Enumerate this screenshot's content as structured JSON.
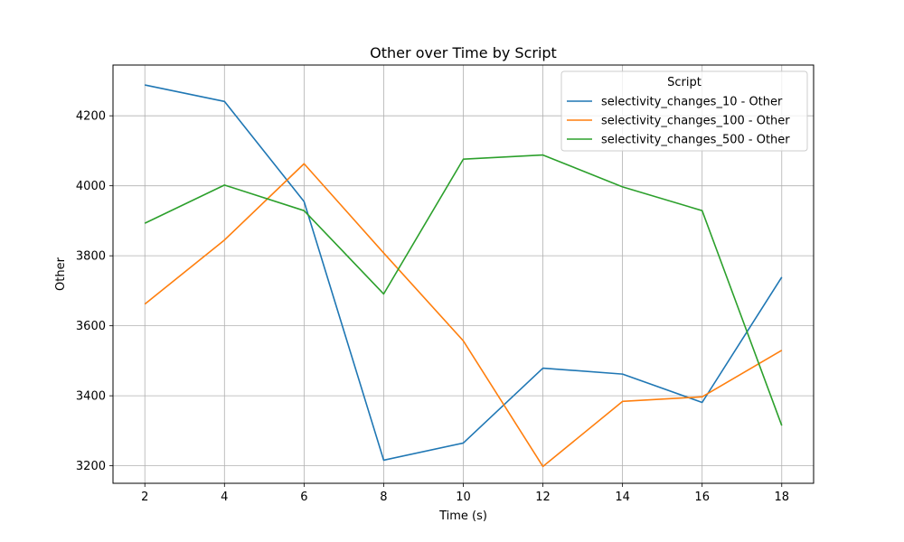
{
  "chart_data": {
    "type": "line",
    "title": "Other over Time by Script",
    "xlabel": "Time (s)",
    "ylabel": "Other",
    "x": [
      2,
      4,
      6,
      8,
      10,
      12,
      14,
      16,
      18
    ],
    "xlim": [
      1.2,
      18.8
    ],
    "ylim": [
      3150,
      4345
    ],
    "xticks": [
      2,
      4,
      6,
      8,
      10,
      12,
      14,
      16,
      18
    ],
    "yticks": [
      3200,
      3400,
      3600,
      3800,
      4000,
      4200
    ],
    "grid": true,
    "legend": {
      "title": "Script",
      "placement": "top-right"
    },
    "series": [
      {
        "name": "selectivity_changes_10 - Other",
        "color": "#1f77b4",
        "values": [
          4288,
          4241,
          3955,
          3216,
          3265,
          3479,
          3462,
          3381,
          3739
        ]
      },
      {
        "name": "selectivity_changes_100 - Other",
        "color": "#ff7f0e",
        "values": [
          3662,
          3845,
          4063,
          3808,
          3557,
          3198,
          3384,
          3397,
          3530
        ]
      },
      {
        "name": "selectivity_changes_500 - Other",
        "color": "#2ca02c",
        "values": [
          3893,
          4002,
          3929,
          3691,
          4076,
          4088,
          3997,
          3929,
          3315
        ]
      }
    ]
  }
}
